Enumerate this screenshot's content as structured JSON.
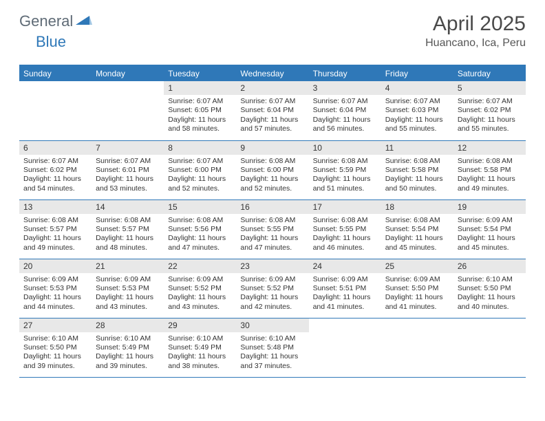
{
  "brand": {
    "part1": "General",
    "part2": "Blue"
  },
  "title": "April 2025",
  "location": "Huancano, Ica, Peru",
  "colors": {
    "header_bg": "#2f78b8",
    "header_text": "#ffffff",
    "daynum_bg": "#e8e8e8",
    "border": "#2f78b8",
    "logo_gray": "#5f6b76",
    "logo_blue": "#2f78b8",
    "background": "#ffffff"
  },
  "day_headers": [
    "Sunday",
    "Monday",
    "Tuesday",
    "Wednesday",
    "Thursday",
    "Friday",
    "Saturday"
  ],
  "weeks": [
    [
      null,
      null,
      {
        "n": "1",
        "sunrise": "6:07 AM",
        "sunset": "6:05 PM",
        "daylight": "11 hours and 58 minutes."
      },
      {
        "n": "2",
        "sunrise": "6:07 AM",
        "sunset": "6:04 PM",
        "daylight": "11 hours and 57 minutes."
      },
      {
        "n": "3",
        "sunrise": "6:07 AM",
        "sunset": "6:04 PM",
        "daylight": "11 hours and 56 minutes."
      },
      {
        "n": "4",
        "sunrise": "6:07 AM",
        "sunset": "6:03 PM",
        "daylight": "11 hours and 55 minutes."
      },
      {
        "n": "5",
        "sunrise": "6:07 AM",
        "sunset": "6:02 PM",
        "daylight": "11 hours and 55 minutes."
      }
    ],
    [
      {
        "n": "6",
        "sunrise": "6:07 AM",
        "sunset": "6:02 PM",
        "daylight": "11 hours and 54 minutes."
      },
      {
        "n": "7",
        "sunrise": "6:07 AM",
        "sunset": "6:01 PM",
        "daylight": "11 hours and 53 minutes."
      },
      {
        "n": "8",
        "sunrise": "6:07 AM",
        "sunset": "6:00 PM",
        "daylight": "11 hours and 52 minutes."
      },
      {
        "n": "9",
        "sunrise": "6:08 AM",
        "sunset": "6:00 PM",
        "daylight": "11 hours and 52 minutes."
      },
      {
        "n": "10",
        "sunrise": "6:08 AM",
        "sunset": "5:59 PM",
        "daylight": "11 hours and 51 minutes."
      },
      {
        "n": "11",
        "sunrise": "6:08 AM",
        "sunset": "5:58 PM",
        "daylight": "11 hours and 50 minutes."
      },
      {
        "n": "12",
        "sunrise": "6:08 AM",
        "sunset": "5:58 PM",
        "daylight": "11 hours and 49 minutes."
      }
    ],
    [
      {
        "n": "13",
        "sunrise": "6:08 AM",
        "sunset": "5:57 PM",
        "daylight": "11 hours and 49 minutes."
      },
      {
        "n": "14",
        "sunrise": "6:08 AM",
        "sunset": "5:57 PM",
        "daylight": "11 hours and 48 minutes."
      },
      {
        "n": "15",
        "sunrise": "6:08 AM",
        "sunset": "5:56 PM",
        "daylight": "11 hours and 47 minutes."
      },
      {
        "n": "16",
        "sunrise": "6:08 AM",
        "sunset": "5:55 PM",
        "daylight": "11 hours and 47 minutes."
      },
      {
        "n": "17",
        "sunrise": "6:08 AM",
        "sunset": "5:55 PM",
        "daylight": "11 hours and 46 minutes."
      },
      {
        "n": "18",
        "sunrise": "6:08 AM",
        "sunset": "5:54 PM",
        "daylight": "11 hours and 45 minutes."
      },
      {
        "n": "19",
        "sunrise": "6:09 AM",
        "sunset": "5:54 PM",
        "daylight": "11 hours and 45 minutes."
      }
    ],
    [
      {
        "n": "20",
        "sunrise": "6:09 AM",
        "sunset": "5:53 PM",
        "daylight": "11 hours and 44 minutes."
      },
      {
        "n": "21",
        "sunrise": "6:09 AM",
        "sunset": "5:53 PM",
        "daylight": "11 hours and 43 minutes."
      },
      {
        "n": "22",
        "sunrise": "6:09 AM",
        "sunset": "5:52 PM",
        "daylight": "11 hours and 43 minutes."
      },
      {
        "n": "23",
        "sunrise": "6:09 AM",
        "sunset": "5:52 PM",
        "daylight": "11 hours and 42 minutes."
      },
      {
        "n": "24",
        "sunrise": "6:09 AM",
        "sunset": "5:51 PM",
        "daylight": "11 hours and 41 minutes."
      },
      {
        "n": "25",
        "sunrise": "6:09 AM",
        "sunset": "5:50 PM",
        "daylight": "11 hours and 41 minutes."
      },
      {
        "n": "26",
        "sunrise": "6:10 AM",
        "sunset": "5:50 PM",
        "daylight": "11 hours and 40 minutes."
      }
    ],
    [
      {
        "n": "27",
        "sunrise": "6:10 AM",
        "sunset": "5:50 PM",
        "daylight": "11 hours and 39 minutes."
      },
      {
        "n": "28",
        "sunrise": "6:10 AM",
        "sunset": "5:49 PM",
        "daylight": "11 hours and 39 minutes."
      },
      {
        "n": "29",
        "sunrise": "6:10 AM",
        "sunset": "5:49 PM",
        "daylight": "11 hours and 38 minutes."
      },
      {
        "n": "30",
        "sunrise": "6:10 AM",
        "sunset": "5:48 PM",
        "daylight": "11 hours and 37 minutes."
      },
      null,
      null,
      null
    ]
  ],
  "labels": {
    "sunrise": "Sunrise: ",
    "sunset": "Sunset: ",
    "daylight": "Daylight: "
  }
}
